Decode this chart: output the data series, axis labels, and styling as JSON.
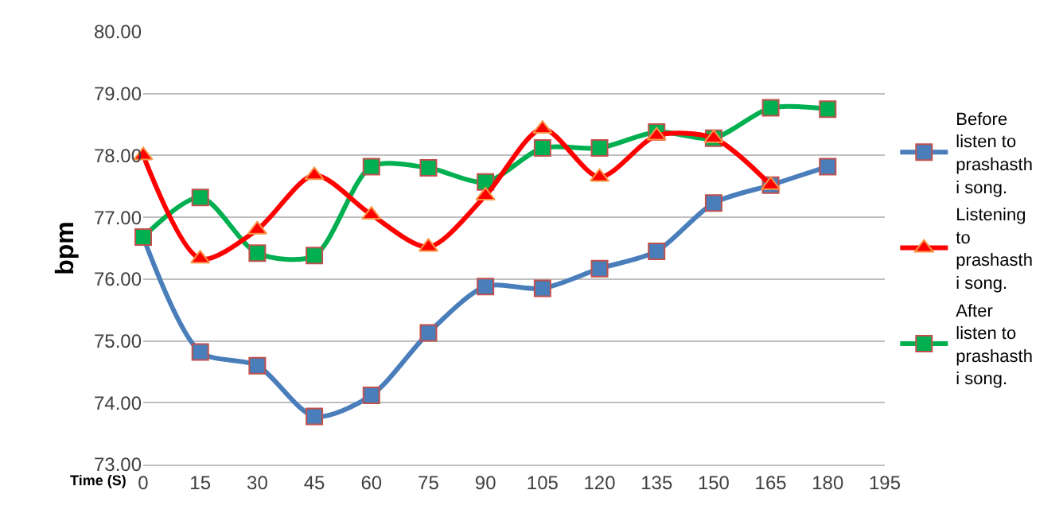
{
  "chart_data": {
    "type": "line",
    "ylabel": "bpm",
    "xlabel": "Time (S)",
    "x": [
      0,
      15,
      30,
      45,
      60,
      75,
      90,
      105,
      120,
      135,
      150,
      165,
      180
    ],
    "xlim": [
      0,
      195
    ],
    "xticks": [
      0,
      15,
      30,
      45,
      60,
      75,
      90,
      105,
      120,
      135,
      150,
      165,
      180,
      195
    ],
    "ylim": [
      73,
      80
    ],
    "yticks": [
      {
        "value": 73,
        "label": "73.00"
      },
      {
        "value": 74,
        "label": "74.00"
      },
      {
        "value": 75,
        "label": "75.00"
      },
      {
        "value": 76,
        "label": "76.00"
      },
      {
        "value": 77,
        "label": "77.00"
      },
      {
        "value": 78,
        "label": "78.00"
      },
      {
        "value": 79,
        "label": "79.00"
      },
      {
        "value": 80,
        "label": "80.00"
      }
    ],
    "grid": "y",
    "legend": "right",
    "line_style": "solid",
    "series": [
      {
        "name": "Before listen to prashasthi song.",
        "color": "#4a7ebb",
        "marker": "square",
        "values": [
          76.68,
          74.82,
          74.6,
          73.78,
          74.12,
          75.13,
          75.88,
          75.85,
          76.17,
          76.45,
          77.23,
          77.52,
          77.82
        ]
      },
      {
        "name": "Listening to prashasthi song.",
        "color": "#ff0000",
        "marker": "triangle",
        "values": [
          78.0,
          76.33,
          76.8,
          77.68,
          77.04,
          76.52,
          77.35,
          78.43,
          77.65,
          78.32,
          78.28,
          77.52,
          null
        ]
      },
      {
        "name": "After listen to prashasthi song.",
        "color": "#00b050",
        "marker": "square",
        "values": [
          76.68,
          77.32,
          76.42,
          76.38,
          77.82,
          77.8,
          77.57,
          78.12,
          78.12,
          78.38,
          78.28,
          78.77,
          78.75
        ]
      }
    ]
  }
}
